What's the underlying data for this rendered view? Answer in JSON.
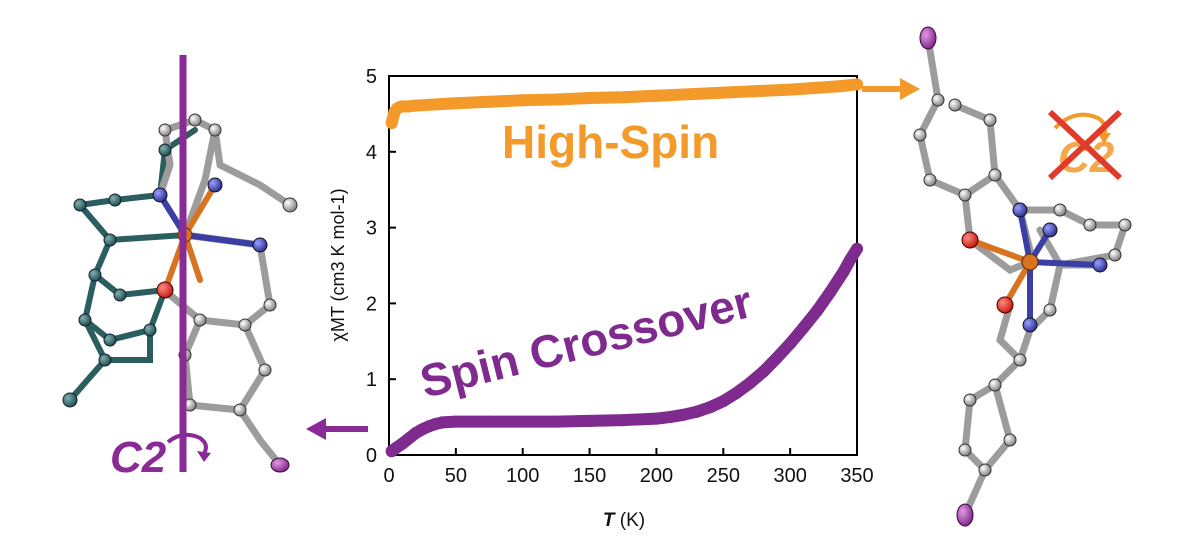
{
  "chart_data": {
    "type": "scatter",
    "xlabel_symbol": "T",
    "xlabel_unit": "(K)",
    "ylabel": "χMT (cm3 K mol-1)",
    "xlim": [
      0,
      350
    ],
    "ylim": [
      0,
      5
    ],
    "x_ticks": [
      0,
      50,
      100,
      150,
      200,
      250,
      300,
      350
    ],
    "y_ticks": [
      0,
      1,
      2,
      3,
      4,
      5
    ],
    "series": [
      {
        "name": "High-Spin",
        "color": "#f39a2b",
        "points": [
          [
            2,
            4.38
          ],
          [
            4,
            4.52
          ],
          [
            6,
            4.57
          ],
          [
            8,
            4.59
          ],
          [
            10,
            4.6
          ],
          [
            15,
            4.6
          ],
          [
            20,
            4.61
          ],
          [
            30,
            4.62
          ],
          [
            40,
            4.63
          ],
          [
            50,
            4.64
          ],
          [
            75,
            4.66
          ],
          [
            100,
            4.68
          ],
          [
            125,
            4.69
          ],
          [
            150,
            4.71
          ],
          [
            175,
            4.72
          ],
          [
            200,
            4.74
          ],
          [
            225,
            4.76
          ],
          [
            250,
            4.78
          ],
          [
            275,
            4.8
          ],
          [
            300,
            4.82
          ],
          [
            325,
            4.85
          ],
          [
            340,
            4.87
          ],
          [
            350,
            4.89
          ]
        ]
      },
      {
        "name": "Spin Crossover",
        "color": "#7e2a8e",
        "points": [
          [
            2,
            0.05
          ],
          [
            5,
            0.09
          ],
          [
            10,
            0.15
          ],
          [
            15,
            0.22
          ],
          [
            20,
            0.29
          ],
          [
            25,
            0.34
          ],
          [
            30,
            0.38
          ],
          [
            35,
            0.41
          ],
          [
            40,
            0.43
          ],
          [
            50,
            0.44
          ],
          [
            75,
            0.44
          ],
          [
            100,
            0.44
          ],
          [
            125,
            0.44
          ],
          [
            150,
            0.45
          ],
          [
            175,
            0.46
          ],
          [
            200,
            0.48
          ],
          [
            210,
            0.5
          ],
          [
            220,
            0.53
          ],
          [
            230,
            0.57
          ],
          [
            240,
            0.63
          ],
          [
            250,
            0.71
          ],
          [
            260,
            0.82
          ],
          [
            270,
            0.95
          ],
          [
            280,
            1.1
          ],
          [
            290,
            1.28
          ],
          [
            300,
            1.47
          ],
          [
            310,
            1.68
          ],
          [
            320,
            1.9
          ],
          [
            330,
            2.15
          ],
          [
            340,
            2.42
          ],
          [
            345,
            2.58
          ],
          [
            350,
            2.72
          ]
        ]
      }
    ],
    "annotations": {
      "high_spin_label": "High-Spin",
      "crossover_label": "Spin Crossover",
      "left_symmetry": "C2",
      "right_symmetry": "C2"
    }
  },
  "colors": {
    "orange": "#f39a2b",
    "purple": "#7e2a8e",
    "teal": "#2b5e5e",
    "grey": "#bdbdbd",
    "blue": "#3b3fa3",
    "red": "#e23a2a",
    "fe": "#d8741f",
    "iodine": "#9a3a9c"
  }
}
